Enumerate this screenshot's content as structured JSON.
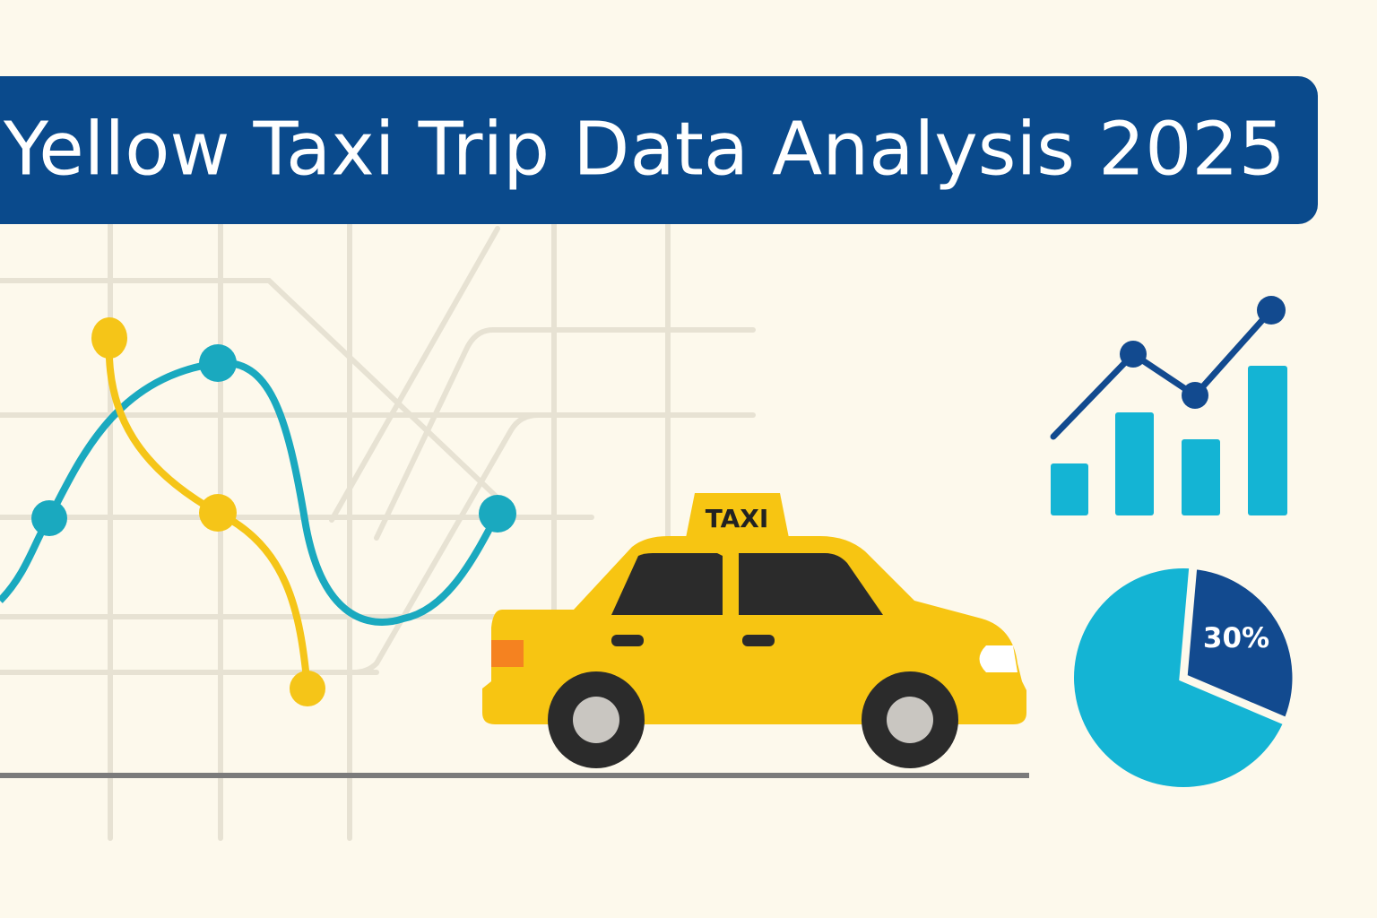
{
  "title": "Yellow Taxi Trip Data Analysis 2025",
  "taxi_sign": "TAXI",
  "pie": {
    "value": 30,
    "label": "30%"
  }
}
